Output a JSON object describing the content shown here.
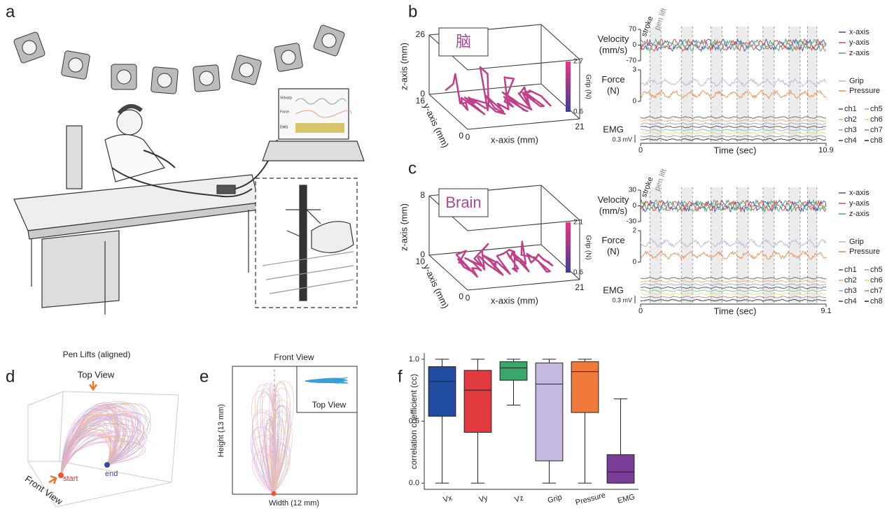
{
  "panel_labels": [
    "a",
    "b",
    "c",
    "d",
    "e",
    "f"
  ],
  "panel_a": {
    "screen_labels": [
      "Velocity",
      "Force",
      "EMG"
    ]
  },
  "chart_data": [
    {
      "type": "recording",
      "inset_text": "脑",
      "z_label": "z-axis (mm)",
      "y_label": "y-axis (mm)",
      "x_label": "x-axis (mm)",
      "zlim": [
        0,
        26
      ],
      "zticks": [
        0,
        26
      ],
      "ylim3d": [
        0,
        16
      ],
      "yticks3d": [
        0,
        16
      ],
      "xlim3d": [
        0,
        21
      ],
      "xticks3d": [
        0,
        21
      ],
      "colorbar_label": "Grip (N)",
      "colorbar_lim": [
        0.6,
        2.7
      ],
      "colorbar_ticks": [
        0.6,
        2.7
      ],
      "colorbar_colors": [
        "#3b3f9c",
        "#e8377b"
      ],
      "annotations": [
        "stroke",
        "pen lift"
      ],
      "velocity": {
        "ylabel": [
          "Velocity",
          "(mm/s)"
        ],
        "ylim": [
          -70,
          70
        ],
        "yticks": [
          70,
          0,
          -70
        ],
        "series": [
          {
            "name": "x-axis",
            "color": "#3b4fa0"
          },
          {
            "name": "y-axis",
            "color": "#e0453a"
          },
          {
            "name": "z-axis",
            "color": "#4aa36f"
          }
        ]
      },
      "force": {
        "ylabel": [
          "Force",
          "(N)"
        ],
        "ylim": [
          0,
          3
        ],
        "yticks": [
          3,
          0
        ],
        "series": [
          {
            "name": "Grip",
            "color": "#b9b3d9"
          },
          {
            "name": "Pressure",
            "color": "#f08a4b"
          }
        ]
      },
      "emg": {
        "ylabel": "EMG",
        "scale_bar": "0.3 mV",
        "series": [
          {
            "name": "ch1",
            "color": "#555555"
          },
          {
            "name": "ch2",
            "color": "#f0a35a"
          },
          {
            "name": "ch3",
            "color": "#8aa0c8"
          },
          {
            "name": "ch4",
            "color": "#444444"
          },
          {
            "name": "ch5",
            "color": "#6fb7a0"
          },
          {
            "name": "ch6",
            "color": "#e8d36a"
          },
          {
            "name": "ch7",
            "color": "#888888"
          },
          {
            "name": "ch8",
            "color": "#222222"
          }
        ]
      },
      "xlabel": "Time (sec)",
      "xlim": [
        0,
        10.9
      ],
      "xticks": [
        0,
        10.9
      ]
    },
    {
      "type": "recording",
      "inset_text": "Brain",
      "z_label": "z-axis (mm)",
      "y_label": "y-axis (mm)",
      "x_label": "x-axis (mm)",
      "zlim": [
        0,
        8
      ],
      "zticks": [
        0,
        8
      ],
      "ylim3d": [
        0,
        10
      ],
      "yticks3d": [
        0,
        10
      ],
      "xlim3d": [
        0,
        21
      ],
      "xticks3d": [
        0,
        21
      ],
      "colorbar_label": "Grip (N)",
      "colorbar_lim": [
        0.6,
        2.1
      ],
      "colorbar_ticks": [
        0.6,
        2.1
      ],
      "colorbar_colors": [
        "#3b3f9c",
        "#e8377b"
      ],
      "annotations": [
        "stroke",
        "pen lift"
      ],
      "velocity": {
        "ylabel": [
          "Velocity",
          "(mm/s)"
        ],
        "ylim": [
          -30,
          30
        ],
        "yticks": [
          30,
          0,
          -30
        ],
        "series": [
          {
            "name": "x-axis",
            "color": "#3b4fa0"
          },
          {
            "name": "y-axis",
            "color": "#e0453a"
          },
          {
            "name": "z-axis",
            "color": "#4aa36f"
          }
        ]
      },
      "force": {
        "ylabel": [
          "Force",
          "(N)"
        ],
        "ylim": [
          0,
          2
        ],
        "yticks": [
          2,
          0
        ],
        "series": [
          {
            "name": "Grip",
            "color": "#b9b3d9"
          },
          {
            "name": "Pressure",
            "color": "#f08a4b"
          }
        ]
      },
      "emg": {
        "ylabel": "EMG",
        "scale_bar": "0.3 mV",
        "series": [
          {
            "name": "ch1",
            "color": "#555555"
          },
          {
            "name": "ch2",
            "color": "#f0a35a"
          },
          {
            "name": "ch3",
            "color": "#8aa0c8"
          },
          {
            "name": "ch4",
            "color": "#444444"
          },
          {
            "name": "ch5",
            "color": "#6fb7a0"
          },
          {
            "name": "ch6",
            "color": "#e8d36a"
          },
          {
            "name": "ch7",
            "color": "#888888"
          },
          {
            "name": "ch8",
            "color": "#222222"
          }
        ]
      },
      "xlabel": "Time (sec)",
      "xlim": [
        0,
        9.1
      ],
      "xticks": [
        0,
        9.1
      ]
    },
    {
      "type": "penlift3d",
      "title": "Pen Lifts (aligned)",
      "top_view": "Top View",
      "front_view": "Front View",
      "start": "start",
      "end": "end"
    },
    {
      "type": "frontview",
      "title": "Front View",
      "inset": "Top View",
      "ylabel": "Height (13 mm)",
      "xlabel": "Width (12 mm)"
    },
    {
      "type": "box",
      "ylabel": "correlation coefficient (cc)",
      "categories": [
        "Vx",
        "Vy",
        "Vz",
        "Grip",
        "Pressure",
        "EMG"
      ],
      "low": [
        0,
        0,
        0.63,
        0,
        0,
        0
      ],
      "q1": [
        0.54,
        0.41,
        0.83,
        0.18,
        0.57,
        0
      ],
      "median": [
        0.82,
        0.75,
        0.93,
        0.8,
        0.9,
        0.09
      ],
      "q3": [
        0.94,
        0.91,
        0.98,
        0.97,
        0.98,
        0.23
      ],
      "high": [
        1.0,
        1.0,
        1.0,
        1.0,
        1.0,
        0.68
      ],
      "colors": [
        "#1f4ea1",
        "#e03a3e",
        "#3aa66a",
        "#c5b9e0",
        "#f07a3a",
        "#7a3e98"
      ],
      "ylim": [
        -0.05,
        1.05
      ],
      "yticks": [
        {
          "value": 0,
          "label": "0.0"
        },
        {
          "value": 0.5,
          "label": "0.5"
        },
        {
          "value": 1,
          "label": "1.0"
        }
      ]
    }
  ]
}
